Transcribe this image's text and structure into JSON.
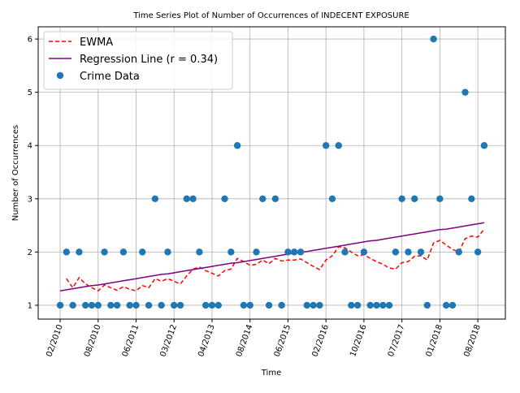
{
  "chart_data": {
    "type": "scatter",
    "title": "Time Series Plot of Number of Occurrences of INDECENT EXPOSURE",
    "x_label": "Time",
    "y_label": "Number of Occurrences",
    "categories": [
      "02/2010",
      null,
      null,
      null,
      null,
      null,
      "08/2010",
      null,
      null,
      null,
      null,
      null,
      "06/2011",
      null,
      null,
      null,
      null,
      null,
      "03/2012",
      null,
      null,
      null,
      null,
      null,
      "04/2013",
      null,
      null,
      null,
      null,
      null,
      "08/2014",
      null,
      null,
      null,
      null,
      null,
      "06/2015",
      null,
      null,
      null,
      null,
      null,
      "02/2016",
      null,
      null,
      null,
      null,
      null,
      "10/2016",
      null,
      null,
      null,
      null,
      null,
      "07/2017",
      null,
      null,
      null,
      null,
      null,
      "01/2018",
      null,
      null,
      null,
      null,
      null,
      "08/2018",
      null
    ],
    "series": [
      {
        "name": "EWMA",
        "kind": "line",
        "dash": true,
        "color": "#ff0000",
        "values": [
          null,
          1.5,
          1.33,
          1.52,
          1.4,
          1.33,
          1.27,
          1.38,
          1.33,
          1.28,
          1.35,
          1.3,
          1.27,
          1.37,
          1.33,
          1.5,
          1.45,
          1.5,
          1.45,
          1.4,
          1.55,
          1.68,
          1.72,
          1.65,
          1.6,
          1.55,
          1.65,
          1.68,
          1.88,
          1.82,
          1.75,
          1.77,
          1.85,
          1.78,
          1.88,
          1.83,
          1.85,
          1.85,
          1.87,
          1.8,
          1.73,
          1.67,
          1.85,
          1.93,
          2.1,
          2.08,
          2.0,
          1.93,
          1.95,
          1.88,
          1.82,
          1.77,
          1.7,
          1.68,
          1.8,
          1.82,
          1.92,
          1.93,
          1.85,
          2.17,
          2.22,
          2.13,
          2.05,
          2.0,
          2.25,
          2.3,
          2.28,
          2.43
        ]
      },
      {
        "name": "Regression Line (r = 0.34)",
        "kind": "line",
        "dash": false,
        "color": "#800080",
        "values": [
          1.27,
          1.29,
          1.31,
          1.33,
          1.35,
          1.37,
          1.38,
          1.4,
          1.42,
          1.44,
          1.46,
          1.48,
          1.5,
          1.52,
          1.54,
          1.56,
          1.58,
          1.59,
          1.61,
          1.63,
          1.65,
          1.67,
          1.69,
          1.71,
          1.73,
          1.75,
          1.77,
          1.79,
          1.8,
          1.82,
          1.84,
          1.86,
          1.88,
          1.9,
          1.92,
          1.94,
          1.96,
          1.98,
          2.0,
          2.01,
          2.03,
          2.05,
          2.07,
          2.09,
          2.11,
          2.13,
          2.15,
          2.17,
          2.19,
          2.21,
          2.22,
          2.24,
          2.26,
          2.28,
          2.3,
          2.32,
          2.34,
          2.36,
          2.38,
          2.4,
          2.42,
          2.43,
          2.45,
          2.47,
          2.49,
          2.51,
          2.53,
          2.55
        ]
      },
      {
        "name": "Crime Data",
        "kind": "points",
        "color": "#1f77b4",
        "values": [
          1,
          2,
          1,
          2,
          1,
          1,
          1,
          2,
          1,
          1,
          2,
          1,
          1,
          2,
          1,
          3,
          1,
          2,
          1,
          1,
          3,
          3,
          2,
          1,
          1,
          1,
          3,
          2,
          4,
          1,
          1,
          2,
          3,
          1,
          3,
          1,
          2,
          2,
          2,
          1,
          1,
          1,
          4,
          3,
          4,
          2,
          1,
          1,
          2,
          1,
          1,
          1,
          1,
          2,
          3,
          2,
          3,
          2,
          1,
          6,
          3,
          1,
          1,
          2,
          5,
          3,
          2,
          4
        ]
      }
    ],
    "xlim": [
      -3.47,
      70.35
    ],
    "ylim": [
      0.74,
      6.23
    ],
    "yticks": [
      1,
      2,
      3,
      4,
      5,
      6
    ],
    "grid": true,
    "legend": "upper-left"
  }
}
